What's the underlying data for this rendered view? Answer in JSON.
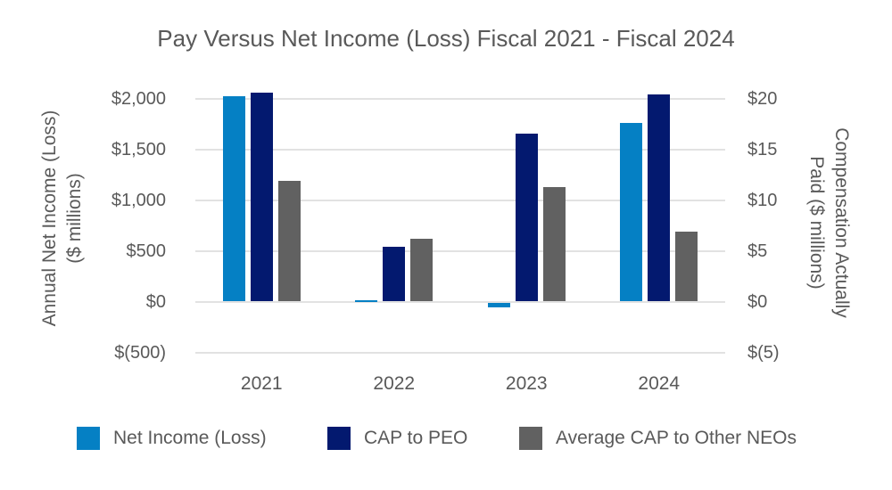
{
  "chart_data": {
    "type": "bar",
    "title": "Pay Versus Net Income (Loss) Fiscal 2021 - Fiscal 2024",
    "categories": [
      "2021",
      "2022",
      "2023",
      "2024"
    ],
    "series": [
      {
        "name": "Net Income (Loss)",
        "axis": "left",
        "color": "#0580C4",
        "values": [
          2025,
          10,
          -40,
          1760
        ]
      },
      {
        "name": "CAP to PEO",
        "axis": "right",
        "color": "#03196F",
        "values": [
          20.6,
          5.4,
          16.5,
          20.4
        ]
      },
      {
        "name": "Average CAP to Other NEOs",
        "axis": "right",
        "color": "#616161",
        "values": [
          11.9,
          6.2,
          11.3,
          6.9
        ]
      }
    ],
    "left_axis": {
      "title": "Annual Net Income (Loss) ($ millions)",
      "title_lines": [
        "Annual Net Income (Loss)",
        "($ millions)"
      ],
      "ticks": [
        "$2,000",
        "$1,500",
        "$1,000",
        "$500",
        "$0",
        "$(500)"
      ],
      "tick_values": [
        2000,
        1500,
        1000,
        500,
        0,
        -500
      ],
      "range": [
        -500,
        2000
      ]
    },
    "right_axis": {
      "title": "Compensation Actually Paid ($ millions)",
      "title_lines": [
        "Compensation Actually",
        "Paid ($ millions)"
      ],
      "ticks": [
        "$20",
        "$15",
        "$10",
        "$5",
        "$0",
        "$(5)"
      ],
      "tick_values": [
        20,
        15,
        10,
        5,
        0,
        -5
      ],
      "range": [
        -5,
        20
      ]
    },
    "grid": true,
    "legend_position": "bottom",
    "colors": {
      "text": "#595959",
      "gridline": "#e2e2e2",
      "background": "#ffffff"
    }
  }
}
